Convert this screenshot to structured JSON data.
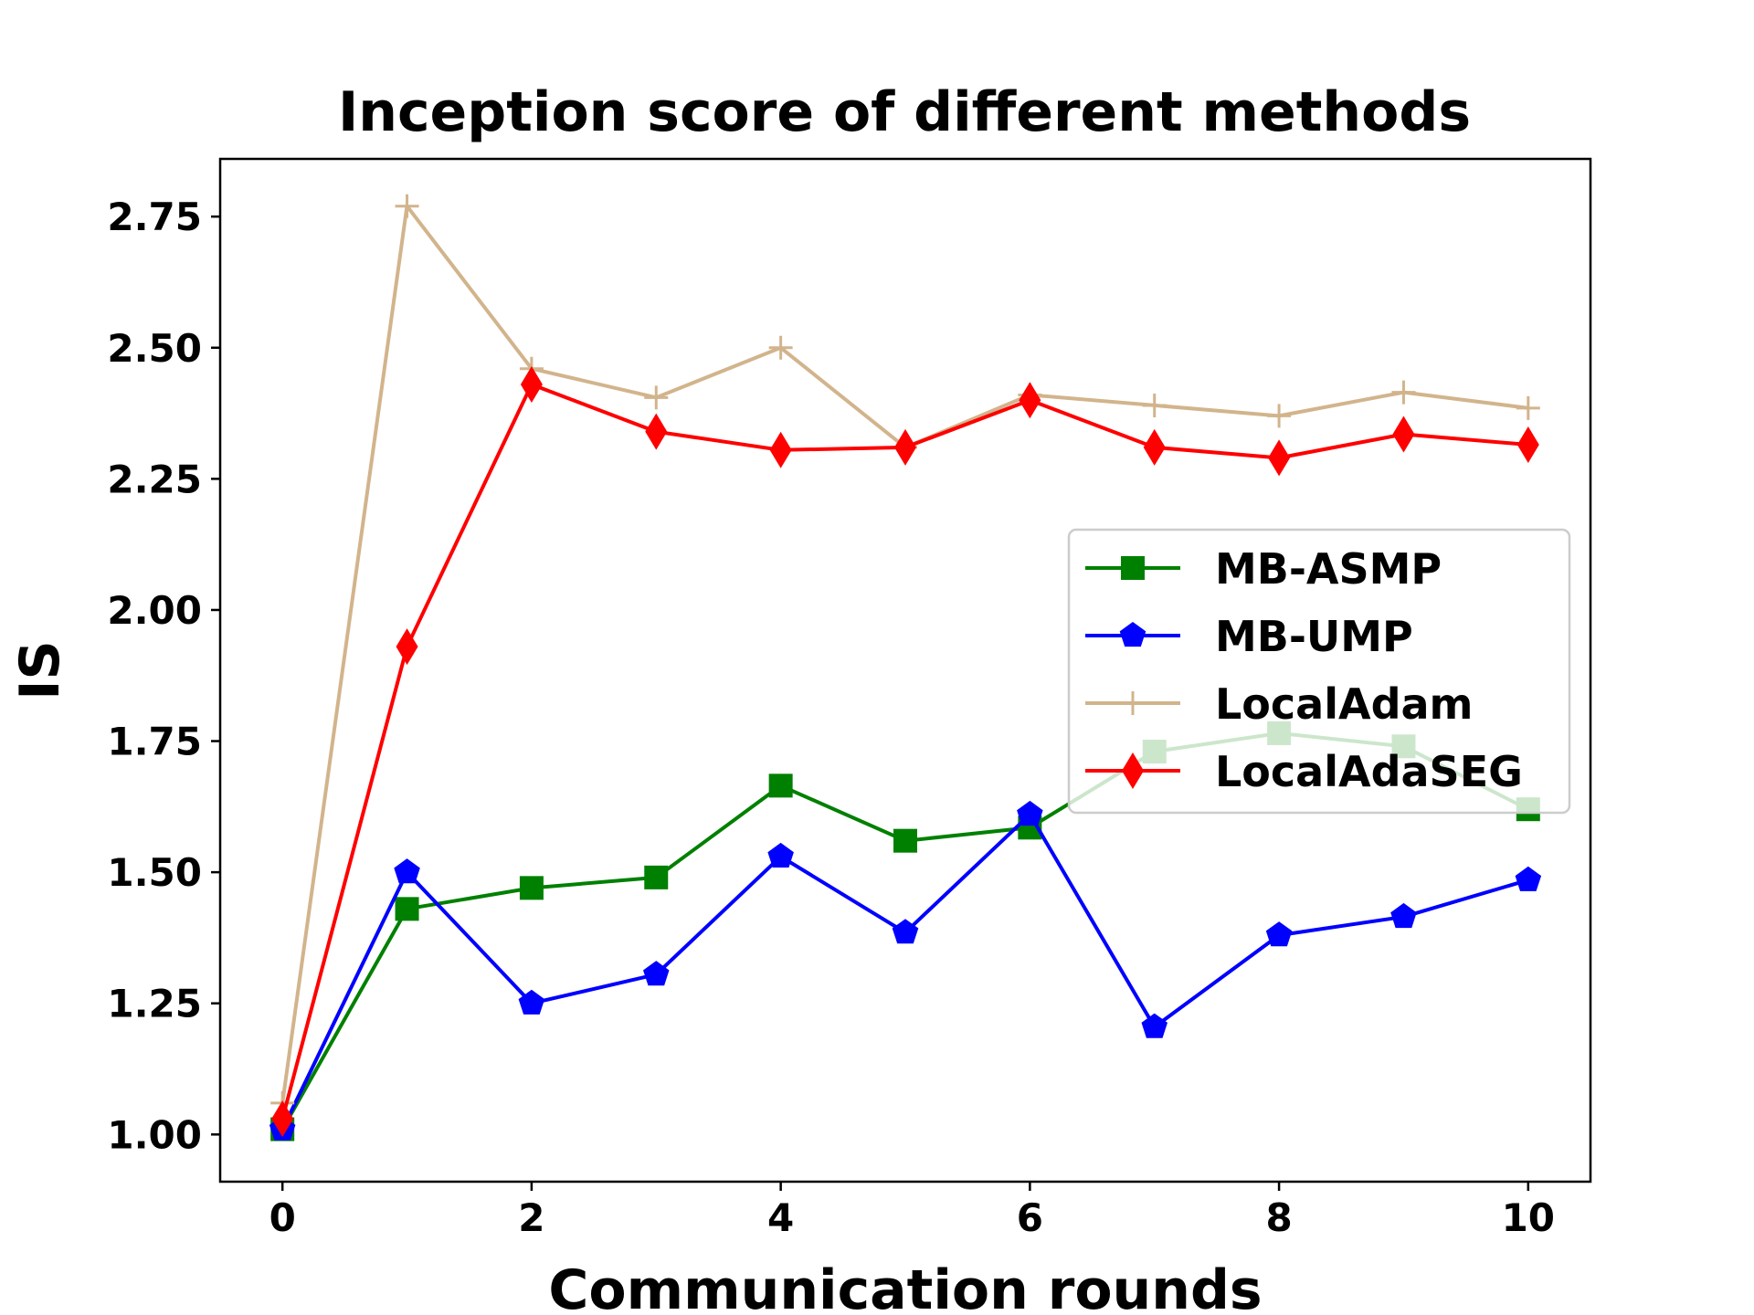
{
  "chart_data": {
    "type": "line",
    "title": "Inception score of different methods",
    "xlabel": "Communication rounds",
    "ylabel": "IS",
    "x": [
      0,
      1,
      2,
      3,
      4,
      5,
      6,
      7,
      8,
      9,
      10
    ],
    "xlim": [
      -0.5,
      10.5
    ],
    "ylim": [
      0.91,
      2.86
    ],
    "xticks": [
      0,
      2,
      4,
      6,
      8,
      10
    ],
    "yticks": [
      1.0,
      1.25,
      1.5,
      1.75,
      2.0,
      2.25,
      2.5,
      2.75
    ],
    "xtick_labels": [
      "0",
      "2",
      "4",
      "6",
      "8",
      "10"
    ],
    "ytick_labels": [
      "1.00",
      "1.25",
      "1.50",
      "1.75",
      "2.00",
      "2.25",
      "2.50",
      "2.75"
    ],
    "legend_position": "center-right",
    "grid": false,
    "series": [
      {
        "name": "MB-ASMP",
        "color": "#008000",
        "marker": "square",
        "values": [
          1.01,
          1.43,
          1.47,
          1.49,
          1.665,
          1.56,
          1.585,
          1.73,
          1.765,
          1.74,
          1.62
        ]
      },
      {
        "name": "MB-UMP",
        "color": "#0000ff",
        "marker": "pentagon",
        "values": [
          1.01,
          1.5,
          1.25,
          1.305,
          1.53,
          1.385,
          1.61,
          1.205,
          1.38,
          1.415,
          1.485
        ]
      },
      {
        "name": "LocalAdam",
        "color": "#d2b48c",
        "marker": "plus",
        "values": [
          1.06,
          2.77,
          2.46,
          2.405,
          2.5,
          2.31,
          2.41,
          2.39,
          2.37,
          2.415,
          2.385
        ]
      },
      {
        "name": "LocalAdaSEG",
        "color": "#ff0000",
        "marker": "diamond",
        "values": [
          1.03,
          1.93,
          2.43,
          2.34,
          2.305,
          2.31,
          2.4,
          2.31,
          2.29,
          2.335,
          2.315
        ]
      }
    ]
  }
}
